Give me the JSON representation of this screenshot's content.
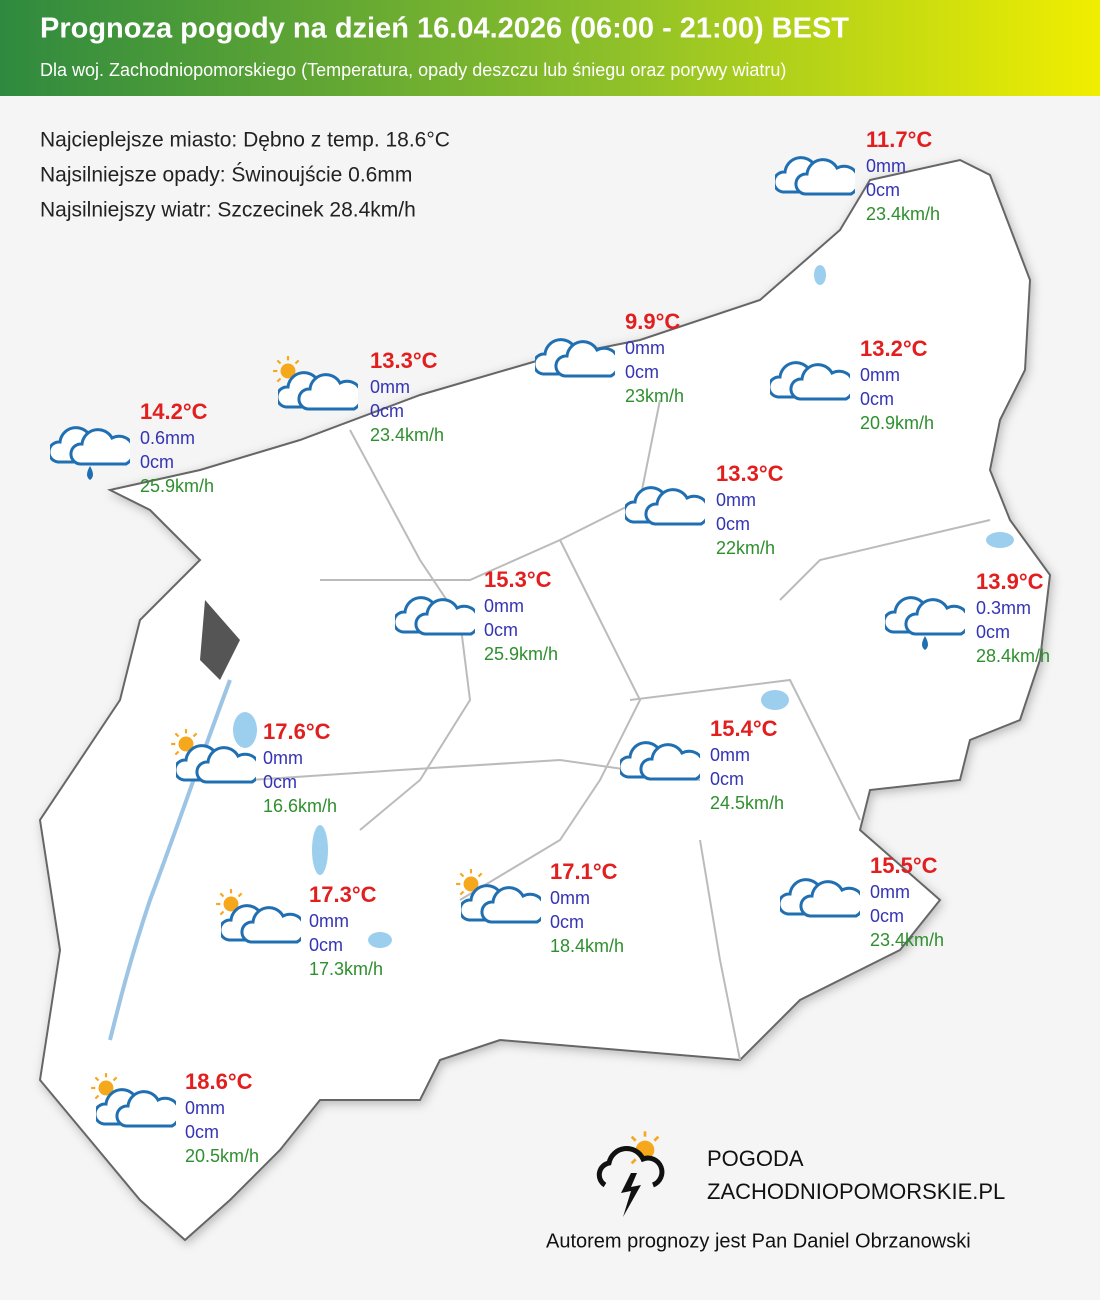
{
  "header": {
    "title": "Prognoza pogody na dzień 16.04.2026 (06:00 - 21:00) BEST",
    "subtitle": "Dla woj. Zachodniopomorskiego (Temperatura, opady deszczu lub śniegu oraz porywy wiatru)"
  },
  "summary": [
    "Najcieplejsze miasto: Dębno z temp. 18.6°C",
    "Najsilniejsze opady: Świnoujście 0.6mm",
    "Najsilniejszy wiatr: Szczecinek 28.4km/h"
  ],
  "locations": [
    {
      "temp": "14.2°C",
      "rain": "0.6mm",
      "snow": "0cm",
      "wind": "25.9km/h"
    },
    {
      "temp": "13.3°C",
      "rain": "0mm",
      "snow": "0cm",
      "wind": "23.4km/h"
    },
    {
      "temp": "9.9°C",
      "rain": "0mm",
      "snow": "0cm",
      "wind": "23km/h"
    },
    {
      "temp": "11.7°C",
      "rain": "0mm",
      "snow": "0cm",
      "wind": "23.4km/h"
    },
    {
      "temp": "13.2°C",
      "rain": "0mm",
      "snow": "0cm",
      "wind": "20.9km/h"
    },
    {
      "temp": "13.3°C",
      "rain": "0mm",
      "snow": "0cm",
      "wind": "22km/h"
    },
    {
      "temp": "15.3°C",
      "rain": "0mm",
      "snow": "0cm",
      "wind": "25.9km/h"
    },
    {
      "temp": "13.9°C",
      "rain": "0.3mm",
      "snow": "0cm",
      "wind": "28.4km/h"
    },
    {
      "temp": "17.6°C",
      "rain": "0mm",
      "snow": "0cm",
      "wind": "16.6km/h"
    },
    {
      "temp": "15.4°C",
      "rain": "0mm",
      "snow": "0cm",
      "wind": "24.5km/h"
    },
    {
      "temp": "15.5°C",
      "rain": "0mm",
      "snow": "0cm",
      "wind": "23.4km/h"
    },
    {
      "temp": "17.1°C",
      "rain": "0mm",
      "snow": "0cm",
      "wind": "18.4km/h"
    },
    {
      "temp": "17.3°C",
      "rain": "0mm",
      "snow": "0cm",
      "wind": "17.3km/h"
    },
    {
      "temp": "18.6°C",
      "rain": "0mm",
      "snow": "0cm",
      "wind": "20.5km/h"
    }
  ],
  "footer": {
    "logo_line1": "POGODA",
    "logo_line2": "ZACHODNIOPOMORSKIE.PL",
    "author": "Autorem prognozy jest Pan Daniel Obrzanowski"
  }
}
